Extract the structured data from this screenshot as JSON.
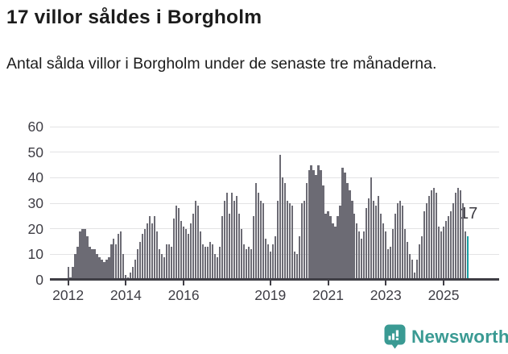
{
  "header": {
    "title": "17 villor såldes i Borgholm",
    "subtitle": "Antal sålda villor i Borgholm under de senaste tre månaderna."
  },
  "chart_data": {
    "type": "bar",
    "title": "17 villor såldes i Borgholm",
    "subtitle": "Antal sålda villor i Borgholm under de senaste tre månaderna.",
    "x_start_month": "2012-01",
    "x_frequency": "monthly",
    "x_tick_labels": [
      "2012",
      "2014",
      "2016",
      "2019",
      "2021",
      "2023",
      "2025"
    ],
    "y_tick_labels": [
      "0",
      "10",
      "20",
      "30",
      "40",
      "50",
      "60"
    ],
    "ylim": [
      0,
      60
    ],
    "grid": true,
    "legend": false,
    "bar_color": "#6c6b74",
    "highlight_color": "#18a0a4",
    "values": [
      5,
      1,
      5,
      10,
      13,
      19,
      20,
      20,
      17,
      13,
      12,
      12,
      10,
      9,
      8,
      7,
      8,
      9,
      14,
      16,
      14,
      18,
      19,
      10,
      2,
      1,
      3,
      5,
      8,
      12,
      15,
      18,
      20,
      22,
      25,
      22,
      25,
      19,
      12,
      10,
      9,
      14,
      14,
      13,
      24,
      29,
      28,
      23,
      21,
      20,
      18,
      22,
      26,
      31,
      29,
      19,
      14,
      13,
      13,
      15,
      14,
      10,
      9,
      13,
      25,
      31,
      34,
      26,
      34,
      31,
      33,
      26,
      20,
      14,
      12,
      13,
      12,
      25,
      38,
      34,
      31,
      30,
      16,
      14,
      11,
      14,
      17,
      31,
      49,
      40,
      38,
      31,
      30,
      29,
      11,
      10,
      17,
      30,
      31,
      38,
      43,
      45,
      43,
      41,
      45,
      43,
      37,
      26,
      27,
      25,
      22,
      21,
      25,
      29,
      44,
      42,
      38,
      35,
      31,
      26,
      22,
      19,
      16,
      19,
      28,
      32,
      40,
      31,
      29,
      33,
      26,
      22,
      19,
      12,
      13,
      20,
      26,
      30,
      31,
      29,
      20,
      15,
      10,
      8,
      3,
      8,
      14,
      17,
      27,
      30,
      33,
      35,
      36,
      34,
      21,
      19,
      21,
      23,
      25,
      27,
      30,
      34,
      36,
      35,
      30,
      19,
      17
    ],
    "annotation": {
      "label": "17",
      "value": 17
    }
  },
  "footer": {
    "brand": "Newsworthy",
    "logo_icon": "newsworthy-chart-bubble-icon",
    "logo_color": "#3a9a93"
  }
}
